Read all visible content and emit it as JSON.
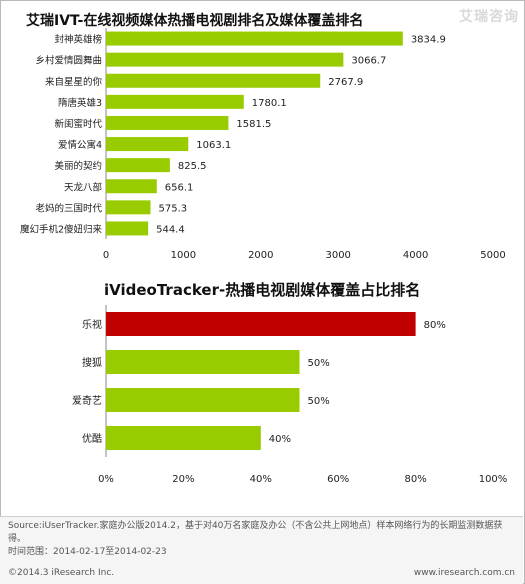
{
  "watermark": "艾瑞咨询",
  "chart_data": [
    {
      "type": "bar",
      "orientation": "horizontal",
      "title": "艾瑞IVT-在线视频媒体热播电视剧排名及媒体覆盖排名",
      "categories": [
        "封神英雄榜",
        "乡村爱情圆舞曲",
        "来自星星的你",
        "隋唐英雄3",
        "新闺蜜时代",
        "爱情公寓4",
        "美丽的契约",
        "天龙八部",
        "老妈的三国时代",
        "魔幻手机2傻妞归来"
      ],
      "values": [
        3834.9,
        3066.7,
        2767.9,
        1780.1,
        1581.5,
        1063.1,
        825.5,
        656.1,
        575.3,
        544.4
      ],
      "value_labels": [
        "3834.9",
        "3066.7",
        "2767.9",
        "1780.1",
        "1581.5",
        "1063.1",
        "825.5",
        "656.1",
        "575.3",
        "544.4"
      ],
      "xlim": [
        0,
        5000
      ],
      "xticks": [
        "0",
        "1000",
        "2000",
        "3000",
        "4000",
        "5000"
      ],
      "bar_color": "#99cc00",
      "grid": false
    },
    {
      "type": "bar",
      "orientation": "horizontal",
      "title": "iVideoTracker-热播电视剧媒体覆盖占比排名",
      "categories": [
        "乐视",
        "搜狐",
        "爱奇艺",
        "优酷"
      ],
      "values": [
        80,
        50,
        50,
        40
      ],
      "value_labels": [
        "80%",
        "50%",
        "50%",
        "40%"
      ],
      "xlim": [
        0,
        100
      ],
      "xticks": [
        "0%",
        "20%",
        "40%",
        "60%",
        "80%",
        "100%"
      ],
      "bar_colors": [
        "#c00000",
        "#99cc00",
        "#99cc00",
        "#99cc00"
      ],
      "grid": false
    }
  ],
  "footer": {
    "source": "Source:iUserTracker.家庭办公版2014.2，基于对40万名家庭及办公（不含公共上网地点）样本网络行为的长期监测数据获得。",
    "period": "时间范围：2014-02-17至2014-02-23",
    "copyright": "©2014.3 iResearch Inc.",
    "site": "www.iresearch.com.cn"
  }
}
